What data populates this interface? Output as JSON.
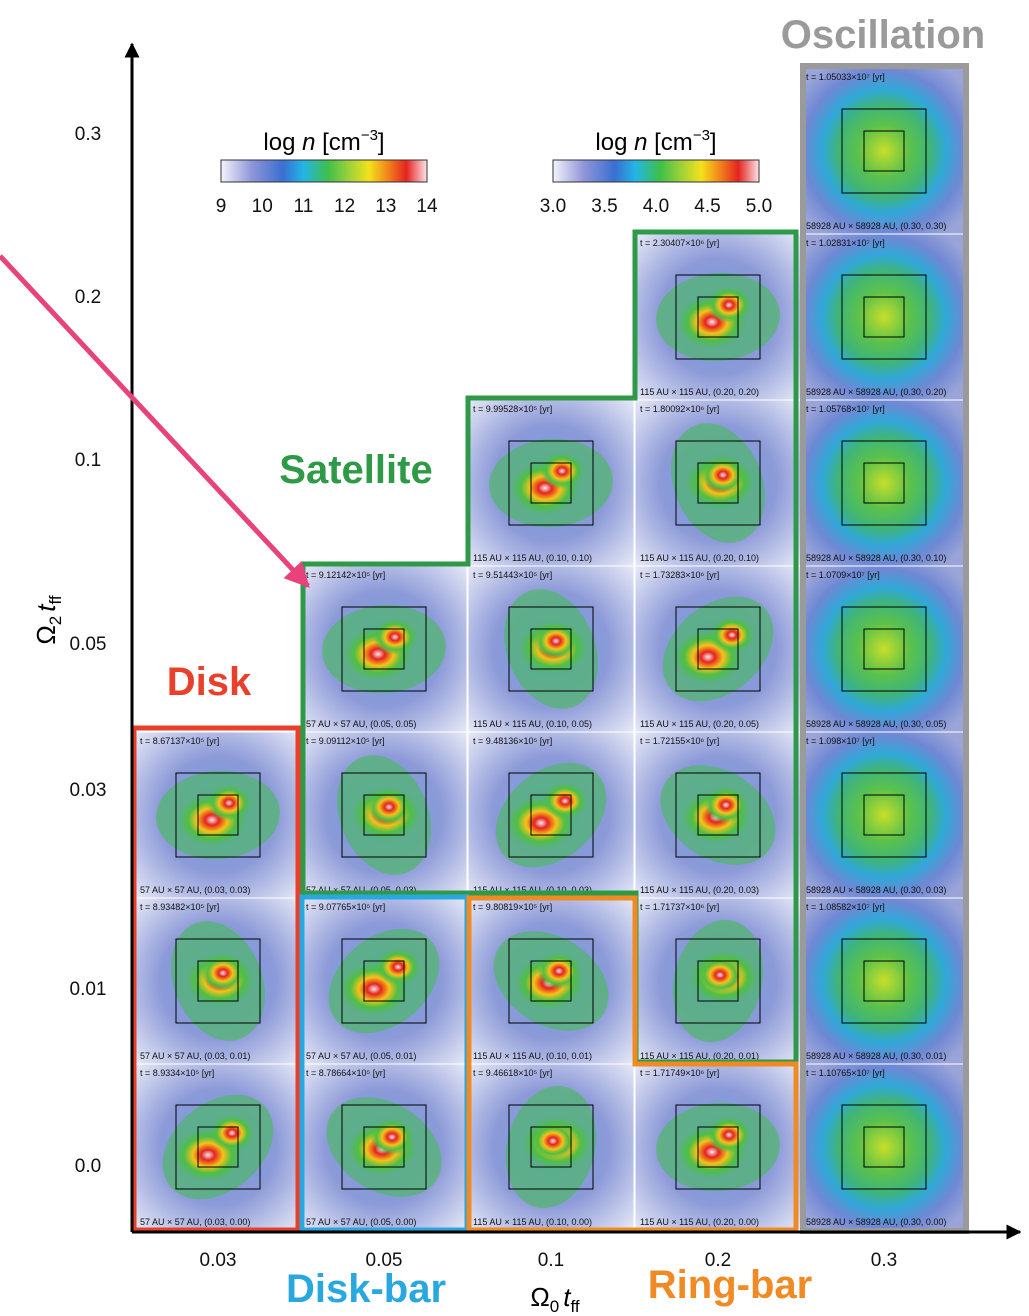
{
  "region_labels": {
    "oscillation": "Oscillation",
    "satellite": "Satellite",
    "disk": "Disk",
    "disk_bar": "Disk-bar",
    "ring_bar": "Ring-bar"
  },
  "axes": {
    "x_label": {
      "symbol": "Ω",
      "symbol_sub": "0",
      "var": "t",
      "var_sub": "ff"
    },
    "y_label": {
      "symbol": "Ω",
      "symbol_sub": "2",
      "var": "t",
      "var_sub": "ff"
    },
    "x_ticks": [
      "0.03",
      "0.05",
      "0.1",
      "0.2",
      "0.3"
    ],
    "y_ticks": [
      "0.0",
      "0.01",
      "0.03",
      "0.05",
      "0.1",
      "0.2",
      "0.3"
    ]
  },
  "colorbars": [
    {
      "title": {
        "log": "log",
        "var": "n",
        "unit": "[cm",
        "exp": "−3",
        "close": "]"
      },
      "ticks": [
        "9",
        "10",
        "11",
        "12",
        "13",
        "14"
      ]
    },
    {
      "title": {
        "log": "log",
        "var": "n",
        "unit": "[cm",
        "exp": "−3",
        "close": "]"
      },
      "ticks": [
        "3.0",
        "3.5",
        "4.0",
        "4.5",
        "5.0"
      ]
    }
  ],
  "panel_columns": [
    [
      {
        "time": "t = 8.9334×10⁵ [yr]",
        "scale": "57 AU × 57 AU, (0.03, 0.00)"
      },
      {
        "time": "t = 8.93482×10⁵ [yr]",
        "scale": "57 AU × 57 AU, (0.03, 0.01)"
      },
      {
        "time": "t = 8.67137×10⁵ [yr]",
        "scale": "57 AU × 57 AU, (0.03, 0.03)"
      }
    ],
    [
      {
        "time": "t = 8.78664×10⁵ [yr]",
        "scale": "57 AU × 57 AU, (0.05, 0.00)"
      },
      {
        "time": "t = 9.07765×10⁵ [yr]",
        "scale": "57 AU × 57 AU, (0.05, 0.01)"
      },
      {
        "time": "t = 9.09112×10⁵ [yr]",
        "scale": "57 AU × 57 AU, (0.05, 0.03)"
      },
      {
        "time": "t = 9.12142×10⁵ [yr]",
        "scale": "57 AU × 57 AU, (0.05, 0.05)"
      }
    ],
    [
      {
        "time": "t = 9.46618×10⁵ [yr]",
        "scale": "115 AU × 115 AU, (0.10, 0.00)"
      },
      {
        "time": "t = 9.80819×10⁵ [yr]",
        "scale": "115 AU × 115 AU, (0.10, 0.01)"
      },
      {
        "time": "t = 9.48136×10⁵ [yr]",
        "scale": "115 AU × 115 AU, (0.10, 0.03)"
      },
      {
        "time": "t = 9.51443×10⁵ [yr]",
        "scale": "115 AU × 115 AU, (0.10, 0.05)"
      },
      {
        "time": "t = 9.99528×10⁵ [yr]",
        "scale": "115 AU × 115 AU, (0.10, 0.10)"
      }
    ],
    [
      {
        "time": "t = 1.71749×10⁶ [yr]",
        "scale": "115 AU × 115 AU, (0.20, 0.00)"
      },
      {
        "time": "t = 1.71737×10⁶ [yr]",
        "scale": "115 AU × 115 AU, (0.20, 0.01)"
      },
      {
        "time": "t = 1.72155×10⁶ [yr]",
        "scale": "115 AU × 115 AU, (0.20, 0.03)"
      },
      {
        "time": "t = 1.73283×10⁶ [yr]",
        "scale": "115 AU × 115 AU, (0.20, 0.05)"
      },
      {
        "time": "t = 1.80092×10⁶ [yr]",
        "scale": "115 AU × 115 AU, (0.20, 0.10)"
      },
      {
        "time": "t = 2.30407×10⁶ [yr]",
        "scale": "115 AU × 115 AU, (0.20, 0.20)"
      }
    ],
    [
      {
        "time": "t = 1.10765×10⁷ [yr]",
        "scale": "58928 AU × 58928 AU, (0.30, 0.00)"
      },
      {
        "time": "t = 1.08582×10⁷ [yr]",
        "scale": "58928 AU × 58928 AU, (0.30, 0.01)"
      },
      {
        "time": "t = 1.098×10⁷ [yr]",
        "scale": "58928 AU × 58928 AU, (0.30, 0.03)"
      },
      {
        "time": "t = 1.0709×10⁷ [yr]",
        "scale": "58928 AU × 58928 AU, (0.30, 0.05)"
      },
      {
        "time": "t = 1.05768×10⁷ [yr]",
        "scale": "58928 AU × 58928 AU, (0.30, 0.10)"
      },
      {
        "time": "t = 1.02831×10⁷ [yr]",
        "scale": "58928 AU × 58928 AU, (0.30, 0.20)"
      },
      {
        "time": "t = 1.05033×10⁷ [yr]",
        "scale": "58928 AU × 58928 AU, (0.30, 0.30)"
      }
    ]
  ]
}
